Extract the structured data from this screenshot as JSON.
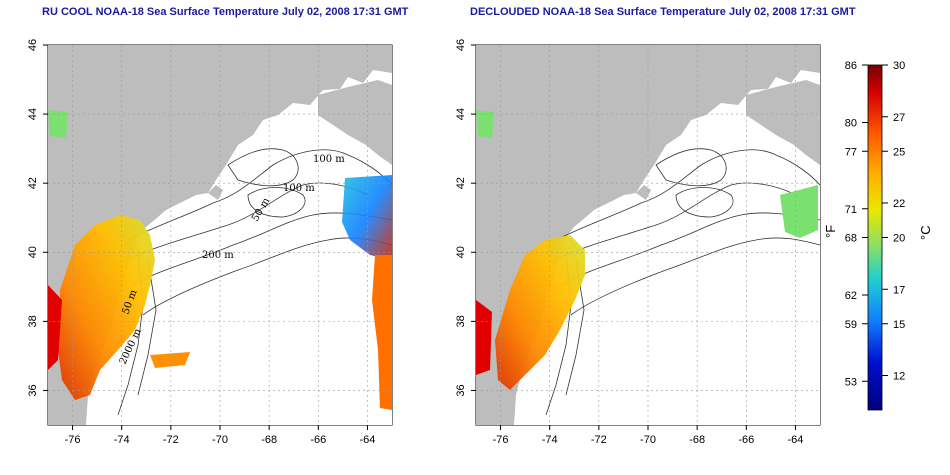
{
  "titles": {
    "left": "RU COOL NOAA-18 Sea Surface Temperature July 02, 2008 17:31 GMT",
    "right": "DECLOUDED NOAA-18 Sea Surface Temperature July 02, 2008 17:31 GMT"
  },
  "map": {
    "lon_range": [
      -77,
      -63
    ],
    "lat_range": [
      35,
      46
    ],
    "lon_ticks": [
      "-76",
      "-74",
      "-72",
      "-70",
      "-68",
      "-66",
      "-64"
    ],
    "lat_ticks": [
      "36",
      "38",
      "40",
      "42",
      "44",
      "46"
    ],
    "contour_labels": [
      "100 m",
      "100 m",
      "50 m",
      "200 m",
      "50 m",
      "2000 m"
    ],
    "land_color": "#bdbdbd",
    "ocean_color": "#ffffff"
  },
  "colorbar": {
    "fahrenheit_ticks": [
      "86",
      "80",
      "77",
      "71",
      "68",
      "62",
      "59",
      "53"
    ],
    "celsius_ticks": [
      "30",
      "27",
      "25",
      "22",
      "20",
      "17",
      "15",
      "12"
    ],
    "unit_f": "°F",
    "unit_c": "°C",
    "colors": [
      "#7a0000",
      "#d40000",
      "#ff5a00",
      "#ffb000",
      "#e8e800",
      "#8ee060",
      "#20d0d0",
      "#1080ff",
      "#0010d0",
      "#00007a"
    ]
  }
}
